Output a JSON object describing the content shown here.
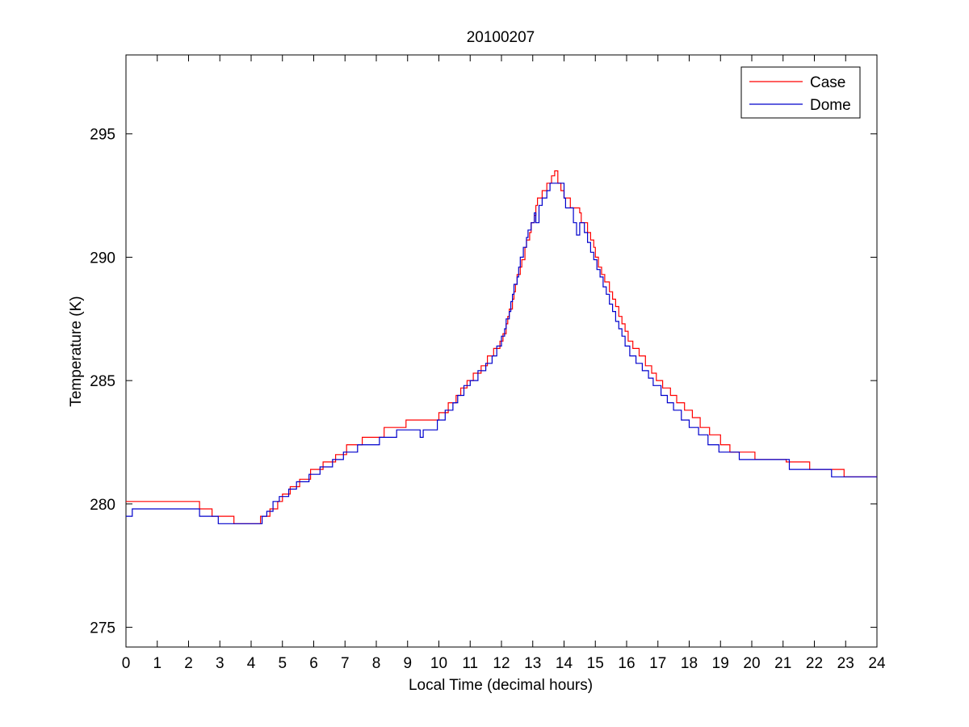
{
  "chart_data": {
    "type": "line",
    "title": "20100207",
    "xlabel": "Local Time (decimal hours)",
    "ylabel": "Temperature (K)",
    "xlim": [
      0,
      24
    ],
    "ylim": [
      274.2,
      298.2
    ],
    "xticks": [
      0,
      1,
      2,
      3,
      4,
      5,
      6,
      7,
      8,
      9,
      10,
      11,
      12,
      13,
      14,
      15,
      16,
      17,
      18,
      19,
      20,
      21,
      22,
      23,
      24
    ],
    "yticks": [
      275,
      280,
      285,
      290,
      295
    ],
    "grid": false,
    "legend_position": "top-right",
    "series": [
      {
        "name": "Case",
        "color": "#ff0000",
        "step": true,
        "points": [
          [
            0,
            280.1
          ],
          [
            2.35,
            279.8
          ],
          [
            2.75,
            279.5
          ],
          [
            3.45,
            279.2
          ],
          [
            4.3,
            279.5
          ],
          [
            4.6,
            279.8
          ],
          [
            4.85,
            280.1
          ],
          [
            5.0,
            280.4
          ],
          [
            5.25,
            280.7
          ],
          [
            5.55,
            281.0
          ],
          [
            5.9,
            281.4
          ],
          [
            6.3,
            281.7
          ],
          [
            6.7,
            282.0
          ],
          [
            7.05,
            282.4
          ],
          [
            7.55,
            282.7
          ],
          [
            8.25,
            283.1
          ],
          [
            8.95,
            283.4
          ],
          [
            10.0,
            283.7
          ],
          [
            10.3,
            284.1
          ],
          [
            10.55,
            284.4
          ],
          [
            10.7,
            284.7
          ],
          [
            10.9,
            285.0
          ],
          [
            11.1,
            285.3
          ],
          [
            11.35,
            285.6
          ],
          [
            11.55,
            286.0
          ],
          [
            11.75,
            286.3
          ],
          [
            11.95,
            286.6
          ],
          [
            12.05,
            286.9
          ],
          [
            12.15,
            287.3
          ],
          [
            12.2,
            287.6
          ],
          [
            12.25,
            287.9
          ],
          [
            12.35,
            288.3
          ],
          [
            12.4,
            288.6
          ],
          [
            12.45,
            288.9
          ],
          [
            12.5,
            289.3
          ],
          [
            12.6,
            289.6
          ],
          [
            12.65,
            289.9
          ],
          [
            12.75,
            290.4
          ],
          [
            12.8,
            290.7
          ],
          [
            12.9,
            291.0
          ],
          [
            12.95,
            291.4
          ],
          [
            13.05,
            291.7
          ],
          [
            13.1,
            292.1
          ],
          [
            13.15,
            292.4
          ],
          [
            13.3,
            292.7
          ],
          [
            13.45,
            293.0
          ],
          [
            13.6,
            293.3
          ],
          [
            13.7,
            293.5
          ],
          [
            13.8,
            293.0
          ],
          [
            13.9,
            292.7
          ],
          [
            14.0,
            292.4
          ],
          [
            14.2,
            292.0
          ],
          [
            14.5,
            291.8
          ],
          [
            14.55,
            291.4
          ],
          [
            14.75,
            291.0
          ],
          [
            14.85,
            290.7
          ],
          [
            14.95,
            290.4
          ],
          [
            15.0,
            290.0
          ],
          [
            15.1,
            289.6
          ],
          [
            15.2,
            289.3
          ],
          [
            15.3,
            289.0
          ],
          [
            15.45,
            288.6
          ],
          [
            15.55,
            288.3
          ],
          [
            15.65,
            288.0
          ],
          [
            15.75,
            287.6
          ],
          [
            15.85,
            287.3
          ],
          [
            15.95,
            287.0
          ],
          [
            16.05,
            286.6
          ],
          [
            16.2,
            286.3
          ],
          [
            16.4,
            286.0
          ],
          [
            16.6,
            285.6
          ],
          [
            16.8,
            285.3
          ],
          [
            16.95,
            285.0
          ],
          [
            17.15,
            284.7
          ],
          [
            17.4,
            284.4
          ],
          [
            17.6,
            284.1
          ],
          [
            17.85,
            283.8
          ],
          [
            18.1,
            283.5
          ],
          [
            18.35,
            283.1
          ],
          [
            18.65,
            282.8
          ],
          [
            19.0,
            282.4
          ],
          [
            19.3,
            282.1
          ],
          [
            20.1,
            281.8
          ],
          [
            21.1,
            281.7
          ],
          [
            21.85,
            281.4
          ],
          [
            22.95,
            281.1
          ],
          [
            24.0,
            281.1
          ]
        ]
      },
      {
        "name": "Dome",
        "color": "#0000cc",
        "step": true,
        "points": [
          [
            0,
            279.5
          ],
          [
            0.2,
            279.8
          ],
          [
            2.35,
            279.5
          ],
          [
            2.95,
            279.2
          ],
          [
            4.35,
            279.5
          ],
          [
            4.5,
            279.7
          ],
          [
            4.7,
            280.1
          ],
          [
            4.9,
            280.3
          ],
          [
            5.2,
            280.6
          ],
          [
            5.45,
            280.9
          ],
          [
            5.85,
            281.2
          ],
          [
            6.2,
            281.5
          ],
          [
            6.6,
            281.8
          ],
          [
            6.95,
            282.1
          ],
          [
            7.4,
            282.4
          ],
          [
            8.1,
            282.7
          ],
          [
            8.65,
            283.0
          ],
          [
            9.4,
            282.7
          ],
          [
            9.5,
            283.0
          ],
          [
            9.95,
            283.4
          ],
          [
            10.2,
            283.8
          ],
          [
            10.45,
            284.1
          ],
          [
            10.6,
            284.4
          ],
          [
            10.8,
            284.8
          ],
          [
            11.0,
            285.0
          ],
          [
            11.25,
            285.4
          ],
          [
            11.5,
            285.7
          ],
          [
            11.7,
            286.0
          ],
          [
            11.85,
            286.4
          ],
          [
            12.0,
            286.8
          ],
          [
            12.1,
            287.1
          ],
          [
            12.15,
            287.5
          ],
          [
            12.25,
            287.8
          ],
          [
            12.3,
            288.2
          ],
          [
            12.35,
            288.5
          ],
          [
            12.4,
            288.9
          ],
          [
            12.5,
            289.2
          ],
          [
            12.55,
            289.6
          ],
          [
            12.6,
            290.0
          ],
          [
            12.7,
            290.4
          ],
          [
            12.8,
            290.8
          ],
          [
            12.85,
            291.1
          ],
          [
            12.95,
            291.4
          ],
          [
            13.05,
            291.8
          ],
          [
            13.1,
            291.4
          ],
          [
            13.2,
            292.1
          ],
          [
            13.3,
            292.4
          ],
          [
            13.45,
            292.7
          ],
          [
            13.55,
            293.0
          ],
          [
            14.0,
            292.4
          ],
          [
            14.05,
            292.0
          ],
          [
            14.3,
            291.4
          ],
          [
            14.4,
            290.9
          ],
          [
            14.5,
            291.4
          ],
          [
            14.65,
            291.0
          ],
          [
            14.75,
            290.6
          ],
          [
            14.85,
            290.2
          ],
          [
            14.95,
            289.9
          ],
          [
            15.05,
            289.5
          ],
          [
            15.15,
            289.2
          ],
          [
            15.25,
            288.8
          ],
          [
            15.35,
            288.5
          ],
          [
            15.45,
            288.1
          ],
          [
            15.55,
            287.8
          ],
          [
            15.65,
            287.4
          ],
          [
            15.75,
            287.1
          ],
          [
            15.85,
            286.8
          ],
          [
            15.95,
            286.4
          ],
          [
            16.1,
            286.0
          ],
          [
            16.3,
            285.7
          ],
          [
            16.5,
            285.4
          ],
          [
            16.7,
            285.1
          ],
          [
            16.85,
            284.8
          ],
          [
            17.1,
            284.4
          ],
          [
            17.3,
            284.1
          ],
          [
            17.5,
            283.8
          ],
          [
            17.75,
            283.4
          ],
          [
            18.0,
            283.1
          ],
          [
            18.3,
            282.8
          ],
          [
            18.6,
            282.4
          ],
          [
            18.95,
            282.1
          ],
          [
            19.6,
            281.8
          ],
          [
            21.2,
            281.4
          ],
          [
            22.55,
            281.1
          ],
          [
            24.0,
            281.1
          ]
        ]
      }
    ]
  }
}
